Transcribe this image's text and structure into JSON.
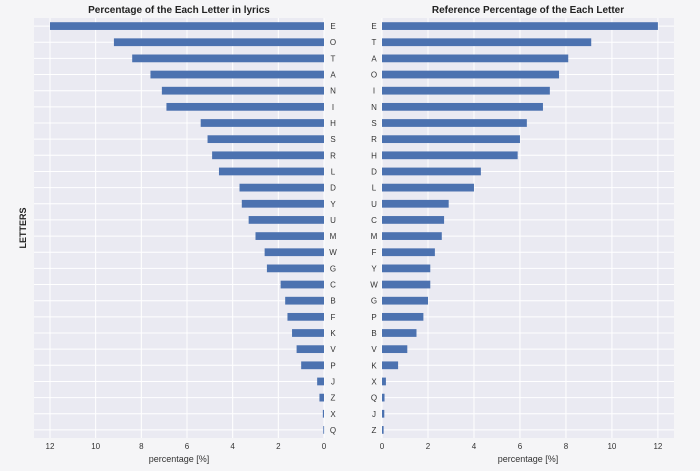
{
  "chart_data": [
    {
      "type": "bar",
      "orientation": "horizontal",
      "title": "Percentage of the Each Letter in lyrics",
      "xlabel": "percentage [%]",
      "ylabel": "LETTERS",
      "x_reversed": true,
      "xlim": [
        0,
        12.7
      ],
      "xticks": [
        12,
        10,
        8,
        6,
        4,
        2,
        0
      ],
      "grid": true,
      "bar_color": "#4c72b0",
      "categories": [
        "E",
        "O",
        "T",
        "A",
        "N",
        "I",
        "H",
        "S",
        "R",
        "L",
        "D",
        "Y",
        "U",
        "M",
        "W",
        "G",
        "C",
        "B",
        "F",
        "K",
        "V",
        "P",
        "J",
        "Z",
        "X",
        "Q"
      ],
      "values": [
        12.0,
        9.2,
        8.4,
        7.6,
        7.1,
        6.9,
        5.4,
        5.1,
        4.9,
        4.6,
        3.7,
        3.6,
        3.3,
        3.0,
        2.6,
        2.5,
        1.9,
        1.7,
        1.6,
        1.4,
        1.2,
        1.0,
        0.3,
        0.2,
        0.05,
        0.03
      ]
    },
    {
      "type": "bar",
      "orientation": "horizontal",
      "title": "Reference Percentage of the Each Letter",
      "xlabel": "percentage [%]",
      "ylabel": "",
      "x_reversed": false,
      "xlim": [
        0,
        12.7
      ],
      "xticks": [
        0,
        2,
        4,
        6,
        8,
        10,
        12
      ],
      "grid": true,
      "bar_color": "#4c72b0",
      "categories": [
        "E",
        "T",
        "A",
        "O",
        "I",
        "N",
        "S",
        "R",
        "H",
        "D",
        "L",
        "U",
        "C",
        "M",
        "F",
        "Y",
        "W",
        "G",
        "P",
        "B",
        "V",
        "K",
        "X",
        "Q",
        "J",
        "Z"
      ],
      "values": [
        12.0,
        9.1,
        8.1,
        7.7,
        7.3,
        7.0,
        6.3,
        6.0,
        5.9,
        4.3,
        4.0,
        2.9,
        2.7,
        2.6,
        2.3,
        2.1,
        2.1,
        2.0,
        1.8,
        1.5,
        1.1,
        0.7,
        0.17,
        0.11,
        0.1,
        0.07
      ]
    }
  ]
}
